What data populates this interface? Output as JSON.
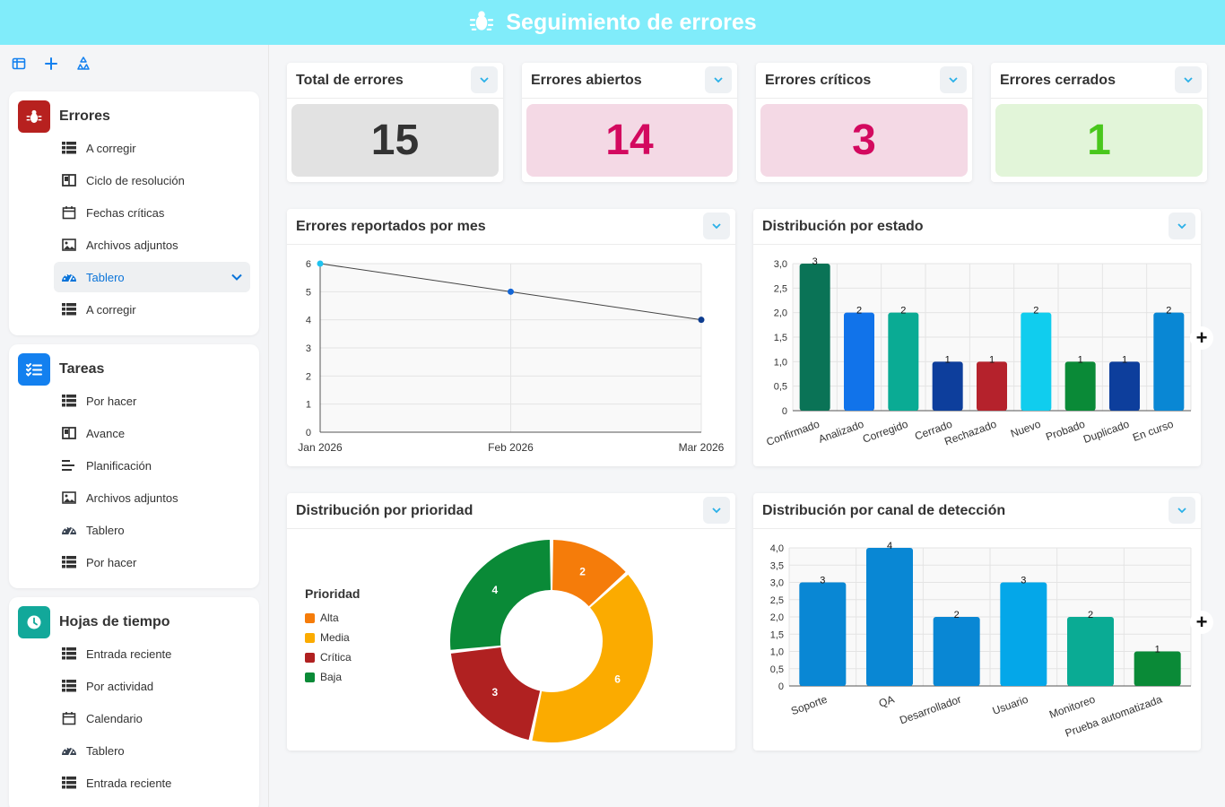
{
  "app": {
    "title": "Seguimiento de errores"
  },
  "sidebar": {
    "groups": [
      {
        "title": "Errores",
        "color": "#b7211f",
        "icon": "bug-icon",
        "items": [
          {
            "label": "A corregir",
            "icon": "table-icon"
          },
          {
            "label": "Ciclo de resolución",
            "icon": "kanban-icon"
          },
          {
            "label": "Fechas críticas",
            "icon": "calendar-icon"
          },
          {
            "label": "Archivos adjuntos",
            "icon": "image-icon"
          },
          {
            "label": "Tablero",
            "icon": "dashboard-icon",
            "active": true
          },
          {
            "label": "A corregir",
            "icon": "table-icon"
          }
        ]
      },
      {
        "title": "Tareas",
        "color": "#1380ef",
        "icon": "checklist-icon",
        "items": [
          {
            "label": "Por hacer",
            "icon": "table-icon"
          },
          {
            "label": "Avance",
            "icon": "kanban-icon"
          },
          {
            "label": "Planificación",
            "icon": "gantt-icon"
          },
          {
            "label": "Archivos adjuntos",
            "icon": "image-icon"
          },
          {
            "label": "Tablero",
            "icon": "dashboard-icon"
          },
          {
            "label": "Por hacer",
            "icon": "table-icon"
          }
        ]
      },
      {
        "title": "Hojas de tiempo",
        "color": "#12a89a",
        "icon": "clock-icon",
        "items": [
          {
            "label": "Entrada reciente",
            "icon": "table-icon"
          },
          {
            "label": "Por actividad",
            "icon": "table-icon"
          },
          {
            "label": "Calendario",
            "icon": "calendar-icon"
          },
          {
            "label": "Tablero",
            "icon": "dashboard-icon"
          },
          {
            "label": "Entrada reciente",
            "icon": "table-icon"
          }
        ]
      }
    ]
  },
  "kpis": [
    {
      "title": "Total de errores",
      "value": "15",
      "bg": "#e2e2e2",
      "fg": "#333333"
    },
    {
      "title": "Errores abiertos",
      "value": "14",
      "bg": "#f4d9e5",
      "fg": "#d3095f"
    },
    {
      "title": "Errores críticos",
      "value": "3",
      "bg": "#f4d9e5",
      "fg": "#d3095f"
    },
    {
      "title": "Errores cerrados",
      "value": "1",
      "bg": "#e2f5d9",
      "fg": "#49c71c"
    }
  ],
  "charts": {
    "line_title": "Errores reportados por mes",
    "status_title": "Distribución por estado",
    "priority_title": "Distribución por prioridad",
    "channel_title": "Distribución por canal de detección",
    "legend_title": "Prioridad"
  },
  "chart_data": [
    {
      "type": "line",
      "x": [
        "Jan 2026",
        "Feb 2026",
        "Mar 2026"
      ],
      "values": [
        6,
        5,
        4
      ],
      "ylim": [
        0,
        6
      ],
      "yticks": [
        "0",
        "1",
        "2",
        "3",
        "4",
        "5",
        "6"
      ],
      "grid": true,
      "point_colors": [
        "#1fc3f0",
        "#1366d6",
        "#0d3c8f"
      ]
    },
    {
      "type": "bar",
      "categories": [
        "Confirmado",
        "Analizado",
        "Corregido",
        "Cerrado",
        "Rechazado",
        "Nuevo",
        "Probado",
        "Duplicado",
        "En curso"
      ],
      "values": [
        3,
        2,
        2,
        1,
        1,
        2,
        1,
        1,
        2
      ],
      "colors": [
        "#0a7356",
        "#1173ea",
        "#0aab94",
        "#0d3e9c",
        "#b5222c",
        "#10cdee",
        "#0a8a37",
        "#0d3e9c",
        "#0987d4"
      ],
      "ylim": [
        0,
        3
      ],
      "yticks": [
        "0",
        "0,5",
        "1,0",
        "1,5",
        "2,0",
        "2,5",
        "3,0"
      ],
      "data_labels": [
        "3",
        "2",
        "2",
        "1",
        "1",
        "2",
        "1",
        "1",
        "2"
      ],
      "grid": true
    },
    {
      "type": "pie",
      "categories": [
        "Alta",
        "Media",
        "Crítica",
        "Baja"
      ],
      "values": [
        2,
        6,
        3,
        4
      ],
      "colors": [
        "#f57c0a",
        "#fbab00",
        "#b02121",
        "#0a8a37"
      ],
      "data_labels": [
        "2",
        "6",
        "3",
        "4"
      ],
      "legend": "left"
    },
    {
      "type": "bar",
      "categories": [
        "Soporte",
        "QA",
        "Desarrollador",
        "Usuario",
        "Monitoreo",
        "Prueba automatizada"
      ],
      "values": [
        3,
        4,
        2,
        3,
        2,
        1
      ],
      "colors": [
        "#0987d4",
        "#0987d4",
        "#0987d4",
        "#04a7e9",
        "#0aab94",
        "#0a8a37"
      ],
      "ylim": [
        0,
        4
      ],
      "yticks": [
        "0",
        "0,5",
        "1,0",
        "1,5",
        "2,0",
        "2,5",
        "3,0",
        "3,5",
        "4,0"
      ],
      "data_labels": [
        "3",
        "4",
        "2",
        "3",
        "2",
        "1"
      ],
      "grid": true
    }
  ]
}
